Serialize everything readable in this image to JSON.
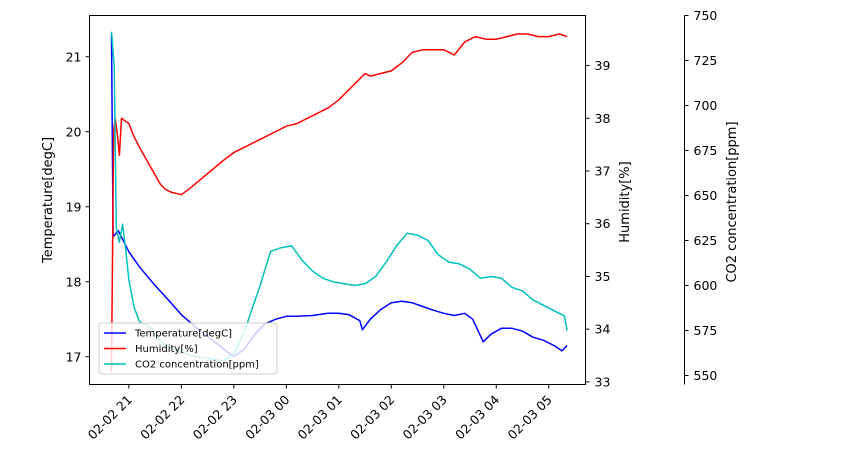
{
  "chart_data": {
    "type": "line",
    "x_axis": {
      "ticks": [
        "02-02 21",
        "02-02 22",
        "02-02 23",
        "02-03 00",
        "02-03 01",
        "02-03 02",
        "02-03 03",
        "02-03 04",
        "02-03 05"
      ],
      "range_hours": [
        20.25,
        29.7
      ]
    },
    "axes": {
      "temperature": {
        "label": "Temperature[degC]",
        "range": [
          16.63,
          21.55
        ],
        "ticks": [
          17,
          18,
          19,
          20,
          21
        ]
      },
      "humidity": {
        "label": "Humidity[%]",
        "range": [
          32.95,
          39.95
        ],
        "ticks": [
          33,
          34,
          35,
          36,
          37,
          38,
          39
        ]
      },
      "co2": {
        "label": "CO2 concentration[ppm]",
        "range": [
          545,
          750
        ],
        "ticks": [
          550,
          575,
          600,
          625,
          650,
          675,
          700,
          725,
          750
        ]
      }
    },
    "legend": {
      "placement": "lower-left"
    },
    "series": [
      {
        "name": "Temperature[degC]",
        "axis": "temperature",
        "color": "#0000ff",
        "points": [
          [
            20.67,
            21.3
          ],
          [
            20.7,
            18.6
          ],
          [
            20.8,
            18.68
          ],
          [
            21.0,
            18.4
          ],
          [
            21.2,
            18.2
          ],
          [
            21.5,
            17.95
          ],
          [
            21.8,
            17.72
          ],
          [
            22.0,
            17.56
          ],
          [
            22.3,
            17.38
          ],
          [
            22.6,
            17.22
          ],
          [
            22.9,
            17.05
          ],
          [
            23.0,
            17.0
          ],
          [
            23.2,
            17.1
          ],
          [
            23.4,
            17.3
          ],
          [
            23.6,
            17.44
          ],
          [
            23.8,
            17.5
          ],
          [
            24.0,
            17.54
          ],
          [
            24.2,
            17.54
          ],
          [
            24.5,
            17.55
          ],
          [
            24.8,
            17.58
          ],
          [
            25.0,
            17.58
          ],
          [
            25.2,
            17.56
          ],
          [
            25.4,
            17.48
          ],
          [
            25.45,
            17.36
          ],
          [
            25.6,
            17.5
          ],
          [
            25.8,
            17.63
          ],
          [
            26.0,
            17.72
          ],
          [
            26.2,
            17.74
          ],
          [
            26.4,
            17.72
          ],
          [
            26.6,
            17.67
          ],
          [
            26.8,
            17.62
          ],
          [
            27.0,
            17.58
          ],
          [
            27.2,
            17.55
          ],
          [
            27.4,
            17.58
          ],
          [
            27.55,
            17.5
          ],
          [
            27.75,
            17.2
          ],
          [
            27.9,
            17.3
          ],
          [
            28.1,
            17.38
          ],
          [
            28.3,
            17.38
          ],
          [
            28.5,
            17.34
          ],
          [
            28.7,
            17.26
          ],
          [
            28.9,
            17.22
          ],
          [
            29.1,
            17.15
          ],
          [
            29.25,
            17.08
          ],
          [
            29.35,
            17.15
          ]
        ]
      },
      {
        "name": "Humidity[%]",
        "axis": "humidity",
        "color": "#ff0000",
        "points": [
          [
            20.67,
            33.2
          ],
          [
            20.71,
            37.75
          ],
          [
            20.74,
            38.0
          ],
          [
            20.78,
            37.7
          ],
          [
            20.82,
            37.3
          ],
          [
            20.86,
            38.0
          ],
          [
            21.0,
            37.9
          ],
          [
            21.1,
            37.65
          ],
          [
            21.2,
            37.45
          ],
          [
            21.4,
            37.1
          ],
          [
            21.6,
            36.75
          ],
          [
            21.7,
            36.65
          ],
          [
            21.8,
            36.6
          ],
          [
            22.0,
            36.55
          ],
          [
            22.2,
            36.7
          ],
          [
            22.5,
            36.95
          ],
          [
            22.8,
            37.2
          ],
          [
            23.0,
            37.35
          ],
          [
            23.2,
            37.45
          ],
          [
            23.5,
            37.6
          ],
          [
            23.8,
            37.75
          ],
          [
            24.0,
            37.85
          ],
          [
            24.2,
            37.9
          ],
          [
            24.5,
            38.05
          ],
          [
            24.8,
            38.2
          ],
          [
            25.0,
            38.35
          ],
          [
            25.2,
            38.55
          ],
          [
            25.4,
            38.75
          ],
          [
            25.5,
            38.85
          ],
          [
            25.6,
            38.8
          ],
          [
            25.8,
            38.85
          ],
          [
            26.0,
            38.9
          ],
          [
            26.2,
            39.05
          ],
          [
            26.4,
            39.25
          ],
          [
            26.6,
            39.3
          ],
          [
            26.8,
            39.3
          ],
          [
            27.0,
            39.3
          ],
          [
            27.2,
            39.2
          ],
          [
            27.4,
            39.45
          ],
          [
            27.6,
            39.55
          ],
          [
            27.8,
            39.5
          ],
          [
            28.0,
            39.5
          ],
          [
            28.2,
            39.55
          ],
          [
            28.4,
            39.6
          ],
          [
            28.6,
            39.6
          ],
          [
            28.8,
            39.55
          ],
          [
            29.0,
            39.55
          ],
          [
            29.2,
            39.6
          ],
          [
            29.35,
            39.55
          ]
        ]
      },
      {
        "name": "CO2 concentration[ppm]",
        "axis": "co2",
        "color": "#00bfbf",
        "points": [
          [
            20.67,
            741
          ],
          [
            20.72,
            722
          ],
          [
            20.76,
            632
          ],
          [
            20.82,
            624
          ],
          [
            20.88,
            634
          ],
          [
            20.94,
            620
          ],
          [
            21.0,
            603
          ],
          [
            21.1,
            588
          ],
          [
            21.2,
            580
          ],
          [
            21.4,
            577
          ],
          [
            21.6,
            569
          ],
          [
            21.8,
            565
          ],
          [
            22.0,
            563
          ],
          [
            22.2,
            561
          ],
          [
            22.4,
            560
          ],
          [
            22.6,
            559
          ],
          [
            22.8,
            558
          ],
          [
            23.0,
            562
          ],
          [
            23.2,
            574
          ],
          [
            23.3,
            583
          ],
          [
            23.5,
            600
          ],
          [
            23.7,
            619
          ],
          [
            23.9,
            621
          ],
          [
            24.1,
            622
          ],
          [
            24.3,
            614
          ],
          [
            24.5,
            608
          ],
          [
            24.7,
            604
          ],
          [
            24.9,
            602
          ],
          [
            25.1,
            601
          ],
          [
            25.3,
            600
          ],
          [
            25.5,
            601
          ],
          [
            25.7,
            605
          ],
          [
            25.9,
            613
          ],
          [
            26.1,
            622
          ],
          [
            26.3,
            629
          ],
          [
            26.5,
            628
          ],
          [
            26.7,
            625
          ],
          [
            26.9,
            617
          ],
          [
            27.1,
            613
          ],
          [
            27.3,
            612
          ],
          [
            27.5,
            609
          ],
          [
            27.7,
            604
          ],
          [
            27.9,
            605
          ],
          [
            28.1,
            604
          ],
          [
            28.3,
            599
          ],
          [
            28.5,
            597
          ],
          [
            28.7,
            592
          ],
          [
            28.9,
            589
          ],
          [
            29.1,
            586
          ],
          [
            29.3,
            583
          ],
          [
            29.35,
            575
          ]
        ]
      }
    ]
  }
}
